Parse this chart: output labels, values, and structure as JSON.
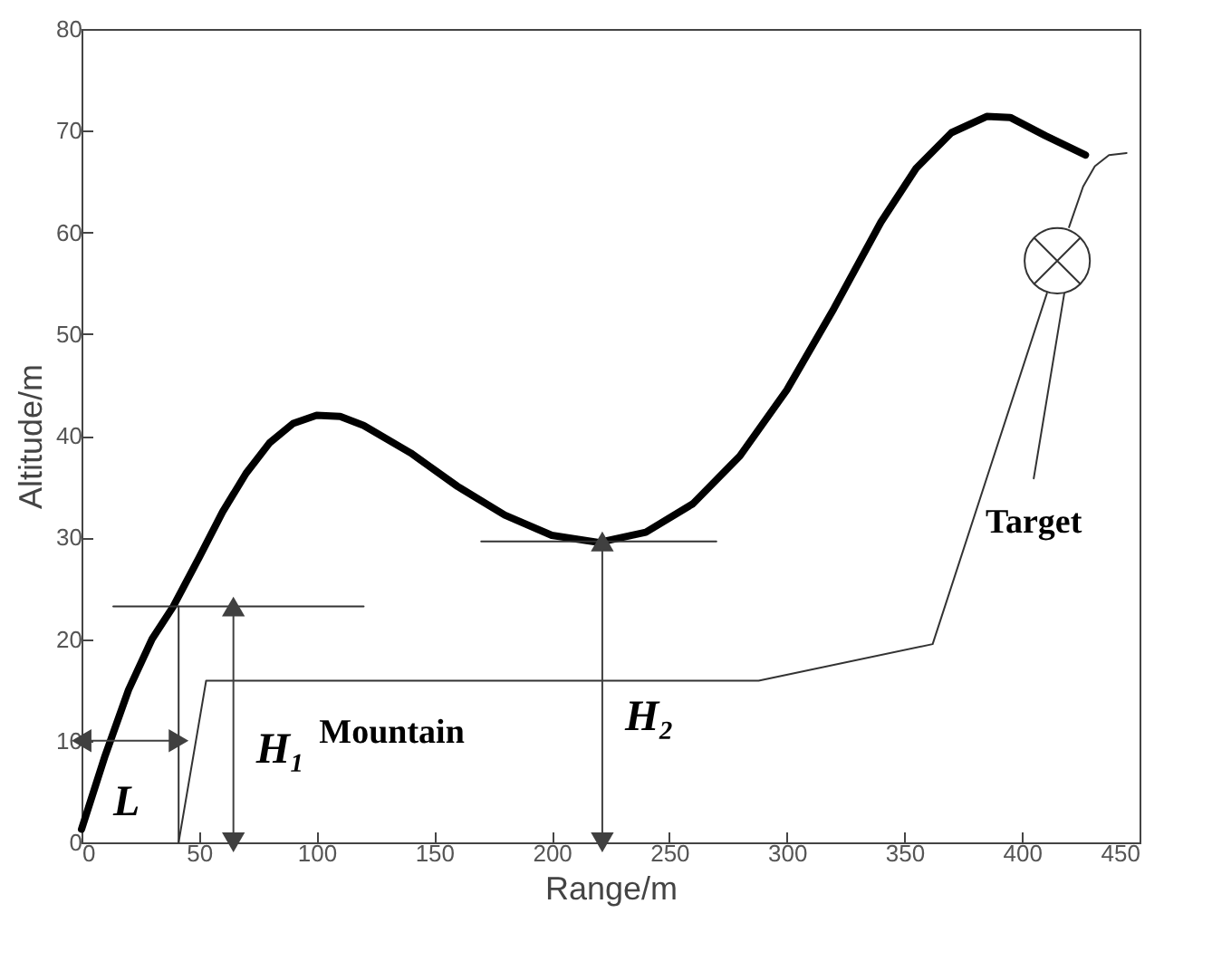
{
  "chart_data": {
    "type": "line",
    "xlabel": "Range/m",
    "ylabel": "Altitude/m",
    "xlim": [
      0,
      450
    ],
    "xticks": [
      0,
      50,
      100,
      150,
      200,
      250,
      300,
      350,
      400,
      450
    ],
    "ylim": [
      0,
      80
    ],
    "yticks": [
      0,
      10,
      20,
      30,
      40,
      50,
      60,
      70,
      80
    ],
    "grid": false,
    "series": [
      {
        "color": "#000000",
        "x": [
          0,
          10,
          20,
          30,
          39,
          50,
          60,
          70,
          80,
          90,
          100,
          110,
          120,
          140,
          160,
          180,
          200,
          220,
          240,
          260,
          280,
          300,
          320,
          340,
          355,
          370,
          385,
          395,
          410,
          427
        ],
        "values": [
          1.3,
          8.5,
          15,
          20,
          23.2,
          28,
          32.5,
          36.3,
          39.3,
          41.2,
          42,
          41.9,
          41,
          38.3,
          35,
          32.2,
          30.2,
          29.5,
          30.5,
          33.3,
          38,
          44.5,
          52.5,
          61,
          66.3,
          69.8,
          71.4,
          71.3,
          69.5,
          67.6
        ]
      },
      {
        "name": "Mountain",
        "color": "#333333",
        "x": [
          41.3,
          53,
          288,
          362,
          410.6
        ],
        "values": [
          0,
          15.9,
          15.9,
          19.5,
          54
        ]
      },
      {
        "name": "Target",
        "color": "#333333",
        "x": [
          405,
          418
        ],
        "values": [
          35.8,
          54
        ]
      },
      {
        "color": "#333333",
        "x": [
          420,
          426,
          431,
          437,
          444.5
        ],
        "values": [
          60.5,
          64.5,
          66.5,
          67.6,
          67.8
        ]
      },
      {
        "color": "#333333",
        "x": [
          13.5,
          120
        ],
        "values": [
          23.2,
          23.2
        ]
      },
      {
        "color": "#333333",
        "x": [
          170,
          270
        ],
        "values": [
          29.6,
          29.6
        ]
      },
      {
        "color": "#333333",
        "x": [
          41.3,
          41.3
        ],
        "values": [
          0,
          23.2
        ]
      },
      {
        "name": "H₁",
        "color": "#404040",
        "marker": "triangle",
        "x": [
          64.6,
          64.6
        ],
        "values": [
          0,
          23.2
        ]
      },
      {
        "name": "H₂",
        "color": "#404040",
        "marker": "triangle",
        "x": [
          221.5,
          221.5
        ],
        "values": [
          0,
          29.6
        ]
      },
      {
        "name": "L",
        "color": "#404040",
        "marker": "triangle",
        "x": [
          0,
          41.3
        ],
        "values": [
          10,
          10
        ]
      },
      {
        "type": "scatter",
        "marker": "cross",
        "color": "#333333",
        "x": [
          415
        ],
        "values": [
          57.2
        ]
      }
    ]
  }
}
